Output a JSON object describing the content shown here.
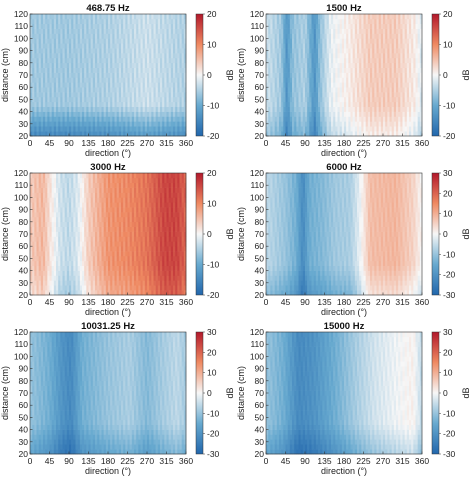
{
  "chart_data": [
    {
      "type": "heatmap",
      "title": "468.75 Hz",
      "xlabel": "direction (°)",
      "ylabel": "distance (cm)",
      "colorbar_label": "dB",
      "x_ticks": [
        "0",
        "45",
        "90",
        "135",
        "180",
        "225",
        "270",
        "315",
        "360"
      ],
      "y_ticks": [
        "20",
        "30",
        "40",
        "50",
        "60",
        "70",
        "80",
        "90",
        "100",
        "110",
        "120"
      ],
      "colorbar_ticks": [
        "20",
        "10",
        "0",
        "-10",
        "-20"
      ],
      "clim": [
        -20,
        20
      ],
      "xlim": [
        0,
        360
      ],
      "ylim": [
        20,
        120
      ],
      "description_field": "Level is about -6 to -9 dB across 0-200 degrees, deepening to about -15 dB below 35 cm, and rising to about 0 to +3 dB near 240-300 degrees at short distances.",
      "anchors": [
        {
          "direction": 0,
          "level_dB": -6
        },
        {
          "direction": 90,
          "level_dB": -6
        },
        {
          "direction": 180,
          "level_dB": -5
        },
        {
          "direction": 270,
          "level_dB": -3
        },
        {
          "direction": 360,
          "level_dB": -5
        }
      ],
      "near_distance_offset_dB": -9
    },
    {
      "type": "heatmap",
      "title": "1500 Hz",
      "xlabel": "direction (°)",
      "ylabel": "distance (cm)",
      "colorbar_label": "dB",
      "x_ticks": [
        "0",
        "45",
        "90",
        "135",
        "180",
        "225",
        "270",
        "315",
        "360"
      ],
      "y_ticks": [
        "20",
        "30",
        "40",
        "50",
        "60",
        "70",
        "80",
        "90",
        "100",
        "110",
        "120"
      ],
      "colorbar_ticks": [
        "20",
        "10",
        "0",
        "-10",
        "-20"
      ],
      "clim": [
        -20,
        20
      ],
      "xlim": [
        0,
        360
      ],
      "ylim": [
        20,
        120
      ],
      "anchors": [
        {
          "direction": 0,
          "level_dB": -3
        },
        {
          "direction": 35,
          "level_dB": -6
        },
        {
          "direction": 48,
          "level_dB": -13
        },
        {
          "direction": 62,
          "level_dB": -7
        },
        {
          "direction": 90,
          "level_dB": -5
        },
        {
          "direction": 112,
          "level_dB": -13
        },
        {
          "direction": 125,
          "level_dB": -7
        },
        {
          "direction": 150,
          "level_dB": -1
        },
        {
          "direction": 190,
          "level_dB": 1
        },
        {
          "direction": 240,
          "level_dB": 4
        },
        {
          "direction": 300,
          "level_dB": 4
        },
        {
          "direction": 345,
          "level_dB": 1
        },
        {
          "direction": 360,
          "level_dB": -2
        }
      ],
      "near_distance_offset_dB": -3
    },
    {
      "type": "heatmap",
      "title": "3000 Hz",
      "xlabel": "direction (°)",
      "ylabel": "distance (cm)",
      "colorbar_label": "dB",
      "x_ticks": [
        "0",
        "45",
        "90",
        "135",
        "180",
        "225",
        "270",
        "315",
        "360"
      ],
      "y_ticks": [
        "20",
        "30",
        "40",
        "50",
        "60",
        "70",
        "80",
        "90",
        "100",
        "110",
        "120"
      ],
      "colorbar_ticks": [
        "20",
        "10",
        "0",
        "-10",
        "-20"
      ],
      "clim": [
        -20,
        20
      ],
      "xlim": [
        0,
        360
      ],
      "ylim": [
        20,
        120
      ],
      "anchors": [
        {
          "direction": 0,
          "level_dB": 4
        },
        {
          "direction": 30,
          "level_dB": 6
        },
        {
          "direction": 50,
          "level_dB": 1
        },
        {
          "direction": 70,
          "level_dB": -3
        },
        {
          "direction": 90,
          "level_dB": -4
        },
        {
          "direction": 110,
          "level_dB": -2
        },
        {
          "direction": 135,
          "level_dB": 4
        },
        {
          "direction": 180,
          "level_dB": 9
        },
        {
          "direction": 225,
          "level_dB": 10
        },
        {
          "direction": 270,
          "level_dB": 12
        },
        {
          "direction": 310,
          "level_dB": 16
        },
        {
          "direction": 340,
          "level_dB": 16
        },
        {
          "direction": 360,
          "level_dB": 13
        }
      ],
      "near_distance_offset_dB": -2
    },
    {
      "type": "heatmap",
      "title": "6000 Hz",
      "xlabel": "direction (°)",
      "ylabel": "distance (cm)",
      "colorbar_label": "dB",
      "x_ticks": [
        "0",
        "45",
        "90",
        "135",
        "180",
        "225",
        "270",
        "315",
        "360"
      ],
      "y_ticks": [
        "20",
        "30",
        "40",
        "50",
        "60",
        "70",
        "80",
        "90",
        "100",
        "110",
        "120"
      ],
      "colorbar_ticks": [
        "30",
        "20",
        "10",
        "0",
        "-10",
        "-20",
        "-30"
      ],
      "clim": [
        -30,
        30
      ],
      "xlim": [
        0,
        360
      ],
      "ylim": [
        20,
        120
      ],
      "anchors": [
        {
          "direction": 0,
          "level_dB": -6
        },
        {
          "direction": 45,
          "level_dB": -10
        },
        {
          "direction": 70,
          "level_dB": -14
        },
        {
          "direction": 85,
          "level_dB": -22
        },
        {
          "direction": 100,
          "level_dB": -14
        },
        {
          "direction": 130,
          "level_dB": -12
        },
        {
          "direction": 160,
          "level_dB": -9
        },
        {
          "direction": 195,
          "level_dB": -8
        },
        {
          "direction": 215,
          "level_dB": -2
        },
        {
          "direction": 240,
          "level_dB": 8
        },
        {
          "direction": 300,
          "level_dB": 9
        },
        {
          "direction": 340,
          "level_dB": 5
        },
        {
          "direction": 360,
          "level_dB": 0
        }
      ],
      "near_distance_offset_dB": -5
    },
    {
      "type": "heatmap",
      "title": "10031.25 Hz",
      "xlabel": "direction (°)",
      "ylabel": "distance (cm)",
      "colorbar_label": "dB",
      "x_ticks": [
        "0",
        "45",
        "90",
        "135",
        "180",
        "225",
        "270",
        "315",
        "360"
      ],
      "y_ticks": [
        "20",
        "30",
        "40",
        "50",
        "60",
        "70",
        "80",
        "90",
        "100",
        "110",
        "120"
      ],
      "colorbar_ticks": [
        "30",
        "20",
        "10",
        "0",
        "-10",
        "-20",
        "-30"
      ],
      "clim": [
        -30,
        30
      ],
      "xlim": [
        0,
        360
      ],
      "ylim": [
        20,
        120
      ],
      "anchors": [
        {
          "direction": 0,
          "level_dB": -10
        },
        {
          "direction": 45,
          "level_dB": -14
        },
        {
          "direction": 75,
          "level_dB": -20
        },
        {
          "direction": 95,
          "level_dB": -22
        },
        {
          "direction": 120,
          "level_dB": -14
        },
        {
          "direction": 180,
          "level_dB": -10
        },
        {
          "direction": 230,
          "level_dB": -8
        },
        {
          "direction": 270,
          "level_dB": -12
        },
        {
          "direction": 300,
          "level_dB": -9
        },
        {
          "direction": 340,
          "level_dB": -6
        },
        {
          "direction": 360,
          "level_dB": -9
        }
      ],
      "near_distance_offset_dB": -6
    },
    {
      "type": "heatmap",
      "title": "15000 Hz",
      "xlabel": "direction (°)",
      "ylabel": "distance (cm)",
      "colorbar_label": "dB",
      "x_ticks": [
        "0",
        "45",
        "90",
        "135",
        "180",
        "225",
        "270",
        "315",
        "360"
      ],
      "y_ticks": [
        "20",
        "30",
        "40",
        "50",
        "60",
        "70",
        "80",
        "90",
        "100",
        "110",
        "120"
      ],
      "colorbar_ticks": [
        "30",
        "20",
        "10",
        "0",
        "-10",
        "-20",
        "-30"
      ],
      "clim": [
        -30,
        30
      ],
      "xlim": [
        0,
        360
      ],
      "ylim": [
        20,
        120
      ],
      "anchors": [
        {
          "direction": 0,
          "level_dB": -10
        },
        {
          "direction": 40,
          "level_dB": -14
        },
        {
          "direction": 75,
          "level_dB": -22
        },
        {
          "direction": 110,
          "level_dB": -20
        },
        {
          "direction": 160,
          "level_dB": -14
        },
        {
          "direction": 210,
          "level_dB": -8
        },
        {
          "direction": 250,
          "level_dB": -4
        },
        {
          "direction": 300,
          "level_dB": -1
        },
        {
          "direction": 340,
          "level_dB": 1
        },
        {
          "direction": 360,
          "level_dB": -6
        }
      ],
      "near_distance_offset_dB": -6
    }
  ]
}
